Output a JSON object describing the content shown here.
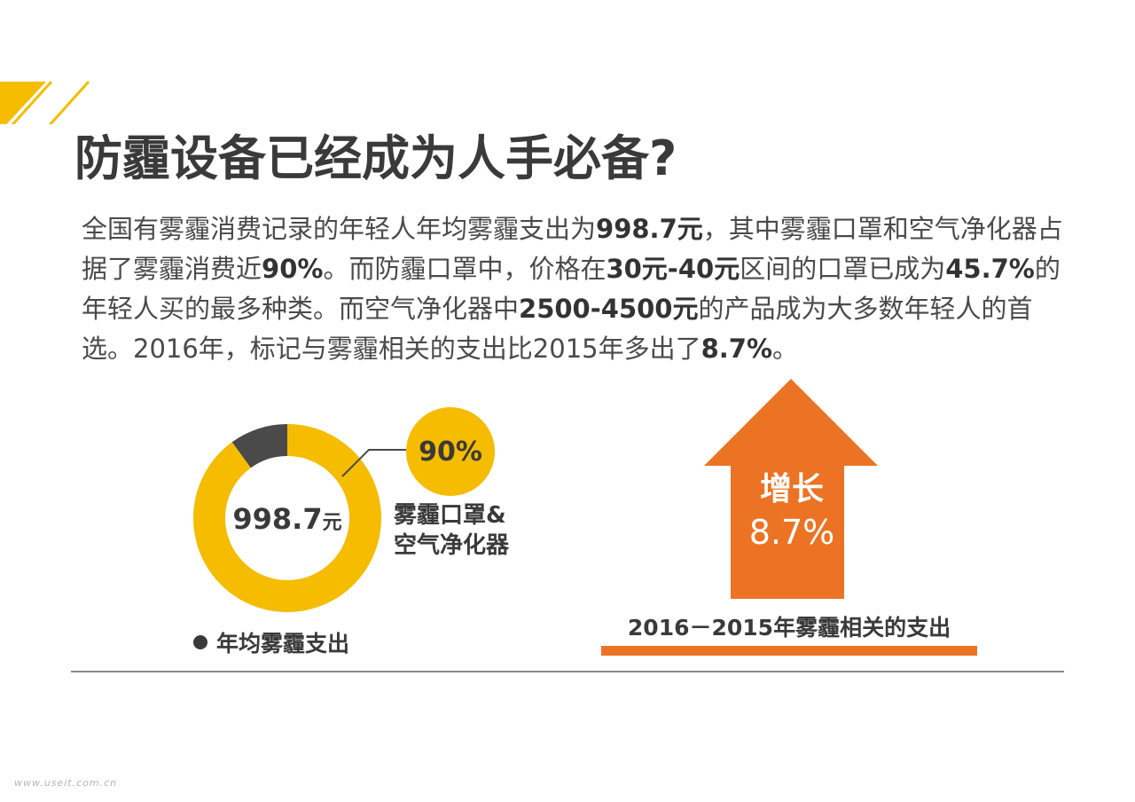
{
  "title": "防霾设备已经成为人手必备?",
  "intro": {
    "s1": "全国有雾霾消费记录的年轻人年均雾霾支出为",
    "b1": "998.7元",
    "s2": "，其中雾霾口罩和空气净化器占据了雾霾消费近",
    "b2": "90%",
    "s3": "。而防霾口罩中，价格在",
    "b3": "30元-40元",
    "s4": "区间的口罩已成为",
    "b4": "45.7%",
    "s5": "的年轻人买的最多种类。而空气净化器中",
    "b5": "2500-4500元",
    "s6": "的产品成为大多数年轻人的首选。2016年，标记与雾霾相关的支出比2015年多出了",
    "b6": "8.7%",
    "s7": "。"
  },
  "colors": {
    "accent_yellow": "#f5bc00",
    "dark": "#4a4a4a",
    "accent_orange": "#ec7323"
  },
  "chart_data": [
    {
      "type": "pie",
      "variant": "donut",
      "center_value": "998.7",
      "center_unit": "元",
      "slices": [
        {
          "label": "雾霾口罩&空气净化器",
          "value": 90,
          "color": "#f5bc00"
        },
        {
          "value": 10,
          "color": "#4a4a4a"
        }
      ],
      "callout_value": "90%",
      "segment_label_line1": "雾霾口罩&",
      "segment_label_line2": "空气净化器",
      "legend": "年均雾霾支出"
    },
    {
      "type": "other",
      "variant": "up-arrow",
      "label_line1": "增长",
      "label_line2": "8.7%",
      "value": 8.7,
      "caption": "2016－2015年雾霾相关的支出"
    }
  ],
  "watermark": "www.useit.com.cn"
}
